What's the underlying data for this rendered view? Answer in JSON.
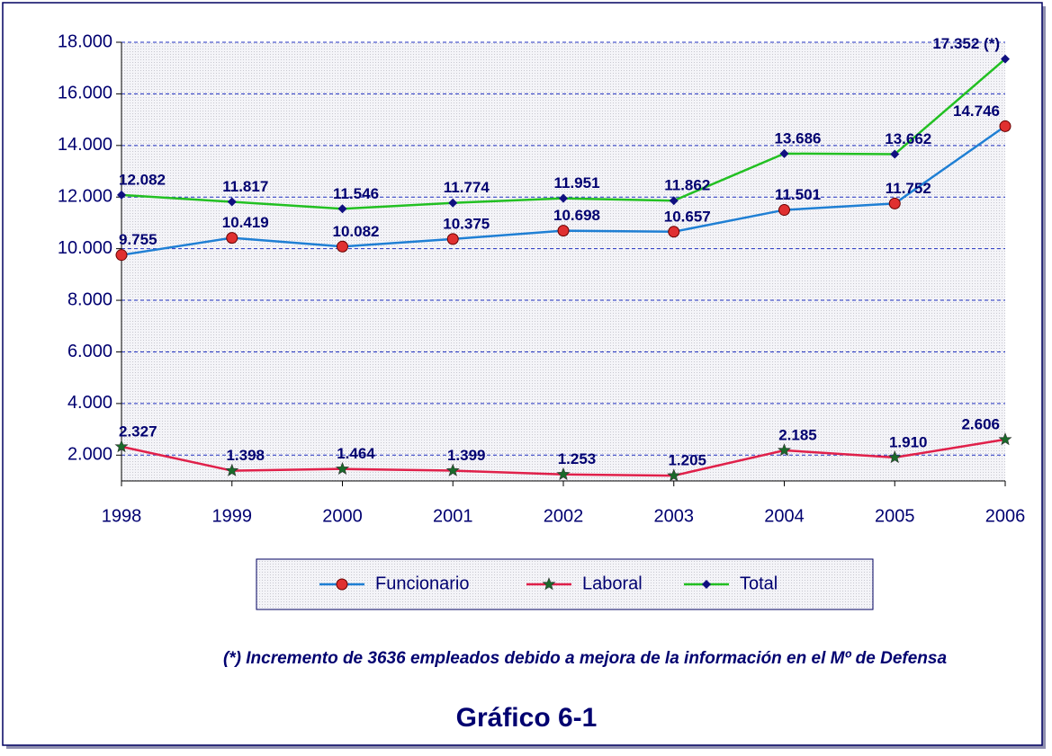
{
  "chart_data": {
    "type": "line",
    "title": "Gráfico 6-1",
    "footnote": "(*) Incremento de 3636 empleados debido a mejora de la información en el Mº de Defensa",
    "categories": [
      "1998",
      "1999",
      "2000",
      "2001",
      "2002",
      "2003",
      "2004",
      "2005",
      "2006"
    ],
    "ylim": [
      1000,
      18000
    ],
    "yticks": [
      {
        "value": 2000,
        "label": "2.000"
      },
      {
        "value": 4000,
        "label": "4.000"
      },
      {
        "value": 6000,
        "label": "6.000"
      },
      {
        "value": 8000,
        "label": "8.000"
      },
      {
        "value": 10000,
        "label": "10.000"
      },
      {
        "value": 12000,
        "label": "12.000"
      },
      {
        "value": 14000,
        "label": "14.000"
      },
      {
        "value": 16000,
        "label": "16.000"
      },
      {
        "value": 18000,
        "label": "18.000"
      }
    ],
    "grid": true,
    "legend": "bottom",
    "series": [
      {
        "name": "Funcionario",
        "color": "#1f7fd4",
        "marker": "circle",
        "marker_color": "#e03030",
        "values": [
          9755,
          10419,
          10082,
          10375,
          10698,
          10657,
          11501,
          11752,
          14746
        ],
        "value_labels": [
          "9.755",
          "10.419",
          "10.082",
          "10.375",
          "10.698",
          "10.657",
          "11.501",
          "11.752",
          "14.746"
        ]
      },
      {
        "name": "Laboral",
        "color": "#e0204a",
        "marker": "star",
        "marker_color": "#1a6a2a",
        "values": [
          2327,
          1398,
          1464,
          1399,
          1253,
          1205,
          2185,
          1910,
          2606
        ],
        "value_labels": [
          "2.327",
          "1.398",
          "1.464",
          "1.399",
          "1.253",
          "1.205",
          "2.185",
          "1.910",
          "2.606"
        ]
      },
      {
        "name": "Total",
        "color": "#22c022",
        "marker": "diamond",
        "marker_color": "#101080",
        "values": [
          12082,
          11817,
          11546,
          11774,
          11951,
          11862,
          13686,
          13662,
          17352
        ],
        "value_labels": [
          "12.082",
          "11.817",
          "11.546",
          "11.774",
          "11.951",
          "11.862",
          "13.686",
          "13.662",
          "17.352 (*)"
        ]
      }
    ]
  }
}
